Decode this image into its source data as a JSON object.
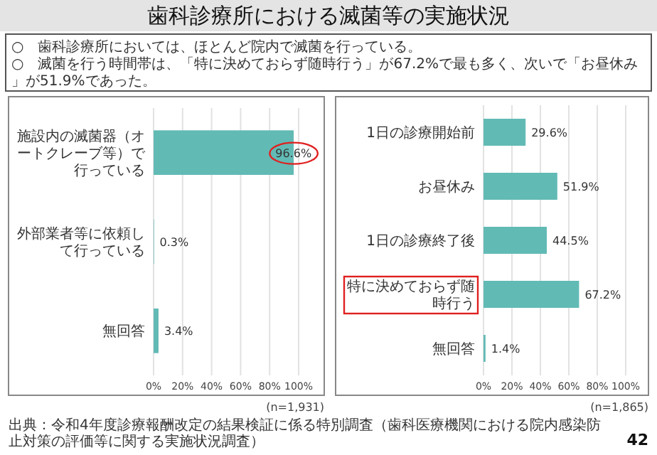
{
  "chart_data": [
    {
      "type": "bar",
      "orientation": "horizontal",
      "title": "歯科診療所における滅菌等の実施状況",
      "categories": [
        "施設内の滅菌器（オートクレーブ等）で行っている",
        "外部業者等に依頼して行っている",
        "無回答"
      ],
      "values": [
        96.6,
        0.3,
        3.4
      ],
      "value_labels": [
        "96.6%",
        "0.3%",
        "3.4%"
      ],
      "color": "#62bab5",
      "xlim": [
        0,
        100
      ],
      "xticks": [
        {
          "value": 0,
          "label": "0%"
        },
        {
          "value": 20,
          "label": "20%"
        },
        {
          "value": 40,
          "label": "40%"
        },
        {
          "value": 60,
          "label": "60%"
        },
        {
          "value": 80,
          "label": "80%"
        },
        {
          "value": 100,
          "label": "100%"
        }
      ],
      "grid": "x",
      "annotations": [
        "○　歯科診療所においては、ほとんど院内で滅菌を行っている。",
        "○　滅菌を行う時間帯は、「特に決めておらず随時行う」が67.2%で最も多く、次いで「お昼休み」が51.9%であった。",
        "(n=1,931)",
        "出典：令和4年度診療報酬改定の結果検証に係る特別調査（歯科医療機関における院内感染防止対策の評価等に関する実施状況調査）",
        "42"
      ]
    },
    {
      "type": "bar",
      "orientation": "horizontal",
      "categories": [
        "1日の診療開始前",
        "お昼休み",
        "1日の診療終了後",
        "特に決めておらず随時行う",
        "無回答"
      ],
      "values": [
        29.6,
        51.9,
        44.5,
        67.2,
        1.4
      ],
      "value_labels": [
        "29.6%",
        "51.9%",
        "44.5%",
        "67.2%",
        "1.4%"
      ],
      "color": "#62bab5",
      "xlim": [
        0,
        100
      ],
      "xticks": [
        {
          "value": 0,
          "label": "0%"
        },
        {
          "value": 20,
          "label": "20%"
        },
        {
          "value": 40,
          "label": "40%"
        },
        {
          "value": 60,
          "label": "60%"
        },
        {
          "value": 80,
          "label": "80%"
        },
        {
          "value": 100,
          "label": "100%"
        }
      ],
      "grid": "x",
      "annotations": [
        "(n=1,865)"
      ]
    }
  ]
}
